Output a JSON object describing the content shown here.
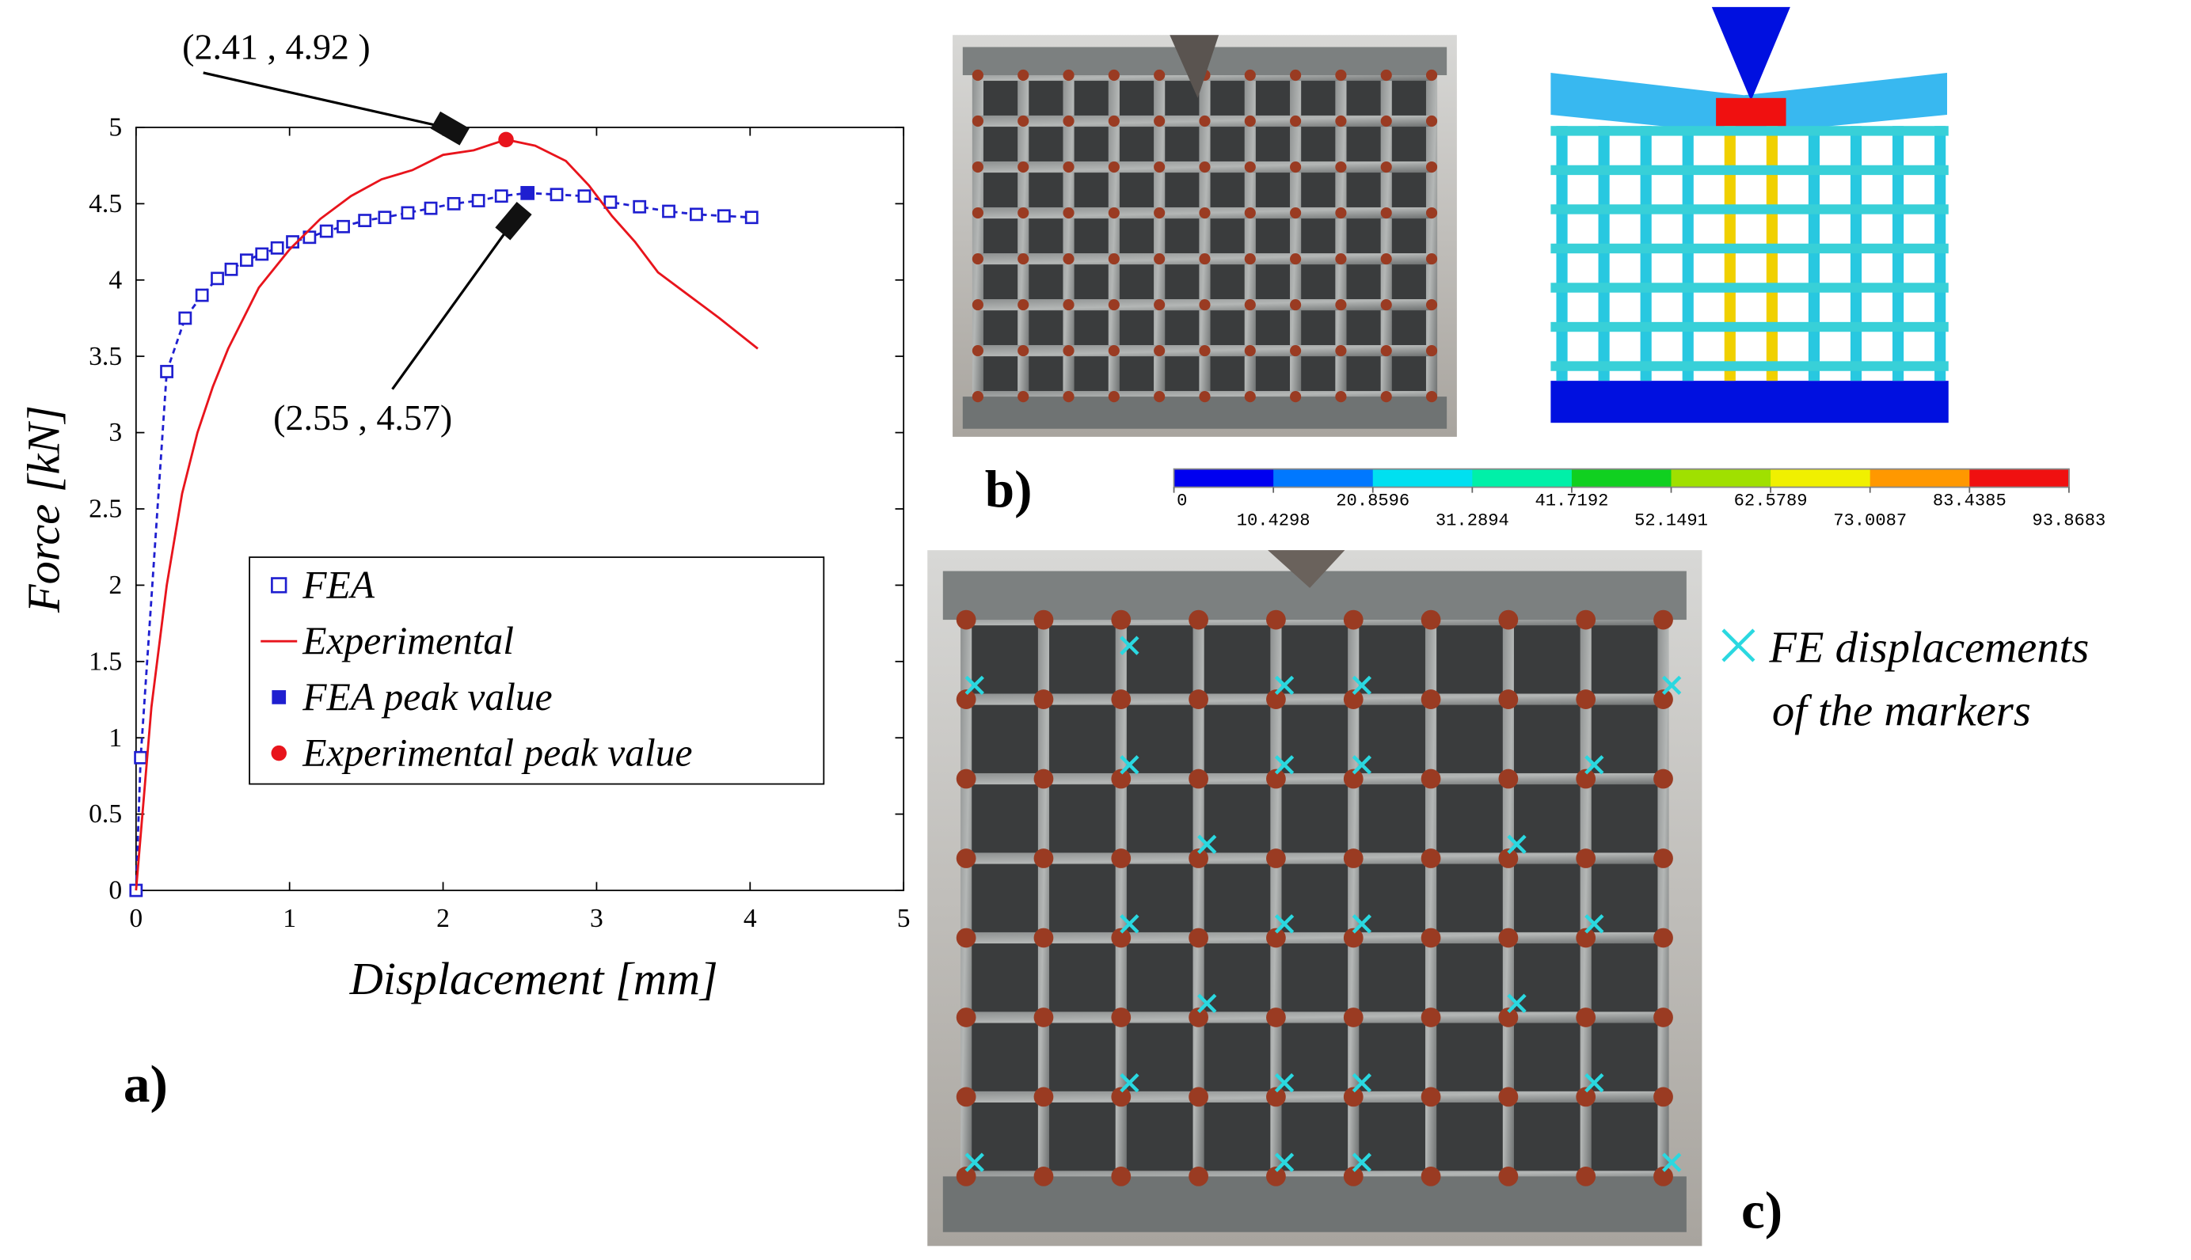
{
  "chart_data": {
    "type": "line",
    "xlabel": "Displacement [mm]",
    "ylabel": "Force [kN]",
    "xlim": [
      0,
      5
    ],
    "xticks": [
      0,
      1,
      2,
      3,
      4,
      5
    ],
    "ylim": [
      0,
      5
    ],
    "yticks": [
      0,
      0.5,
      1,
      1.5,
      2,
      2.5,
      3,
      3.5,
      4,
      4.5,
      5
    ],
    "legend": "lower center",
    "series": [
      {
        "name": "FEA",
        "color": "#1f1fd0",
        "marker": "open-square",
        "line": "dashed",
        "x": [
          0,
          0.03,
          0.2,
          0.32,
          0.43,
          0.53,
          0.62,
          0.72,
          0.82,
          0.92,
          1.02,
          1.13,
          1.24,
          1.35,
          1.49,
          1.62,
          1.77,
          1.92,
          2.07,
          2.23,
          2.38,
          2.55,
          2.74,
          2.92,
          3.09,
          3.28,
          3.47,
          3.65,
          3.83,
          4.01
        ],
        "values": [
          0,
          0.87,
          3.4,
          3.75,
          3.9,
          4.01,
          4.07,
          4.13,
          4.17,
          4.21,
          4.25,
          4.28,
          4.32,
          4.35,
          4.39,
          4.41,
          4.44,
          4.47,
          4.5,
          4.52,
          4.55,
          4.57,
          4.56,
          4.55,
          4.51,
          4.48,
          4.45,
          4.43,
          4.42,
          4.41
        ]
      },
      {
        "name": "Experimental",
        "color": "#e8141c",
        "marker": "none",
        "line": "solid",
        "x": [
          0,
          0.05,
          0.1,
          0.2,
          0.3,
          0.4,
          0.5,
          0.6,
          0.7,
          0.8,
          1.0,
          1.2,
          1.4,
          1.6,
          1.8,
          2.0,
          2.2,
          2.41,
          2.6,
          2.8,
          2.95,
          3.1,
          3.25,
          3.4,
          3.6,
          3.8,
          4.05
        ],
        "values": [
          0,
          0.6,
          1.2,
          2.0,
          2.6,
          3.0,
          3.3,
          3.55,
          3.75,
          3.95,
          4.2,
          4.4,
          4.55,
          4.66,
          4.72,
          4.82,
          4.85,
          4.92,
          4.88,
          4.78,
          4.62,
          4.42,
          4.25,
          4.05,
          3.9,
          3.75,
          3.55
        ]
      },
      {
        "name": "FEA peak value",
        "color": "#1f1fd0",
        "marker": "square",
        "line": "none",
        "x": [
          2.55
        ],
        "values": [
          4.57
        ]
      },
      {
        "name": "Experimental peak value",
        "color": "#e8141c",
        "marker": "circle",
        "line": "none",
        "x": [
          2.41
        ],
        "values": [
          4.92
        ]
      }
    ],
    "annotations": [
      {
        "text": "(2.41 , 4.92 )"
      },
      {
        "text": "(2.55 , 4.57)"
      }
    ]
  },
  "figure": {
    "panel_labels": [
      "a)",
      "b)",
      "c)"
    ],
    "colorbar": {
      "ticks": [
        0,
        10.4298,
        20.8596,
        31.2894,
        41.7192,
        52.1491,
        62.5789,
        73.0087,
        83.4385,
        93.8683
      ],
      "colors": [
        "#0000f0",
        "#0078ff",
        "#00e0f0",
        "#00f0a8",
        "#10d020",
        "#a0e000",
        "#f0f000",
        "#ff9800",
        "#f01010"
      ]
    },
    "marker_legend": [
      "FE displacements",
      "of the markers"
    ],
    "marker_color": "#2ad8e0"
  }
}
